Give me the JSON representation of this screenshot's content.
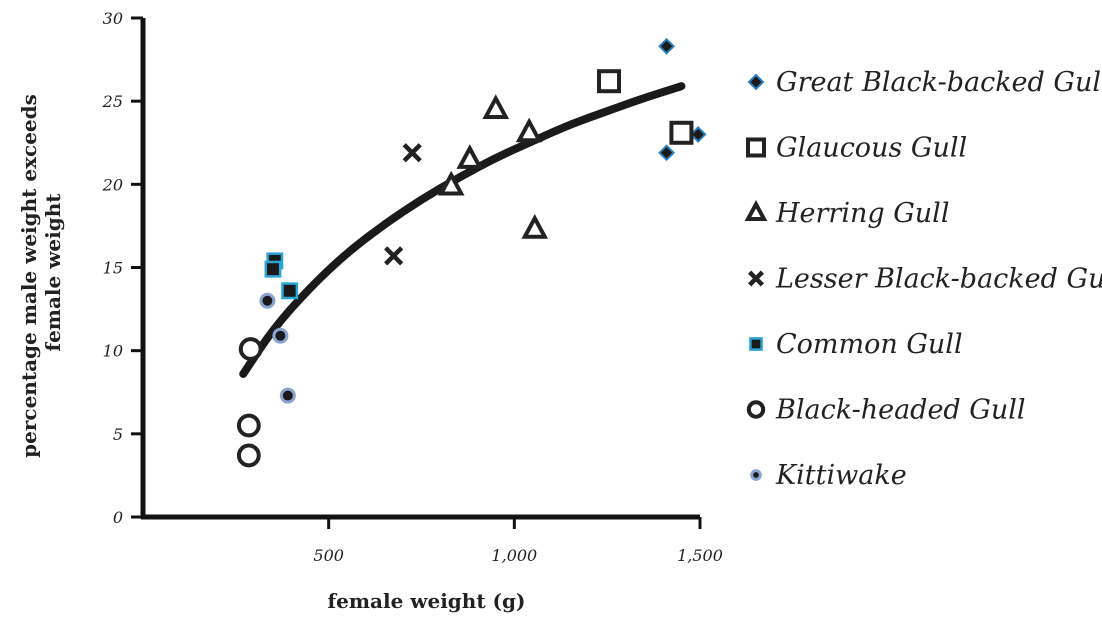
{
  "chart_data": {
    "type": "scatter",
    "title": "",
    "xlabel": "female weight (g)",
    "ylabel_lines": [
      "percentage male weight exceeds",
      "female weight"
    ],
    "xlim": [
      0,
      1500
    ],
    "ylim": [
      0,
      30
    ],
    "x_ticks": [
      500,
      1000,
      1500
    ],
    "x_tick_labels": [
      "500",
      "1,000",
      "1,500"
    ],
    "y_ticks": [
      0,
      5,
      10,
      15,
      20,
      25,
      30
    ],
    "y_tick_labels": [
      "0",
      "5",
      "10",
      "15",
      "20",
      "25",
      "30"
    ],
    "grid": false,
    "legend_position": "right",
    "series": [
      {
        "name": "Great Black-backed Gull",
        "marker": "diamond",
        "color": "#2a7fbf",
        "points": [
          [
            1410,
            28.3
          ],
          [
            1410,
            21.9
          ],
          [
            1495,
            23.0
          ]
        ]
      },
      {
        "name": "Glaucous Gull",
        "marker": "square-open",
        "color": "#222222",
        "points": [
          [
            1255,
            26.2
          ],
          [
            1450,
            23.1
          ]
        ]
      },
      {
        "name": "Herring Gull",
        "marker": "triangle-open",
        "color": "#222222",
        "points": [
          [
            950,
            24.5
          ],
          [
            1040,
            23.1
          ],
          [
            880,
            21.5
          ],
          [
            830,
            19.9
          ],
          [
            1055,
            17.3
          ]
        ]
      },
      {
        "name": "Lesser Black-backed Gull",
        "marker": "x",
        "color": "#222222",
        "points": [
          [
            725,
            21.9
          ],
          [
            675,
            15.7
          ]
        ]
      },
      {
        "name": "Common Gull",
        "marker": "square-filled",
        "color": "#2aa6d6",
        "points": [
          [
            355,
            15.4
          ],
          [
            350,
            14.9
          ],
          [
            395,
            13.6
          ]
        ]
      },
      {
        "name": "Black-headed Gull",
        "marker": "circle-open",
        "color": "#222222",
        "points": [
          [
            290,
            10.1
          ],
          [
            285,
            5.5
          ],
          [
            285,
            3.7
          ]
        ]
      },
      {
        "name": "Kittiwake",
        "marker": "circle-filled",
        "color": "#8aa4d0",
        "points": [
          [
            335,
            13.0
          ],
          [
            370,
            10.9
          ],
          [
            390,
            7.3
          ]
        ]
      }
    ],
    "trendline": {
      "type": "logarithmic",
      "points": [
        [
          270,
          8.6
        ],
        [
          350,
          11.3
        ],
        [
          450,
          13.8
        ],
        [
          550,
          15.9
        ],
        [
          650,
          17.6
        ],
        [
          750,
          19.1
        ],
        [
          850,
          20.4
        ],
        [
          950,
          21.6
        ],
        [
          1050,
          22.6
        ],
        [
          1150,
          23.6
        ],
        [
          1250,
          24.4
        ],
        [
          1350,
          25.2
        ],
        [
          1450,
          25.9
        ]
      ]
    }
  }
}
